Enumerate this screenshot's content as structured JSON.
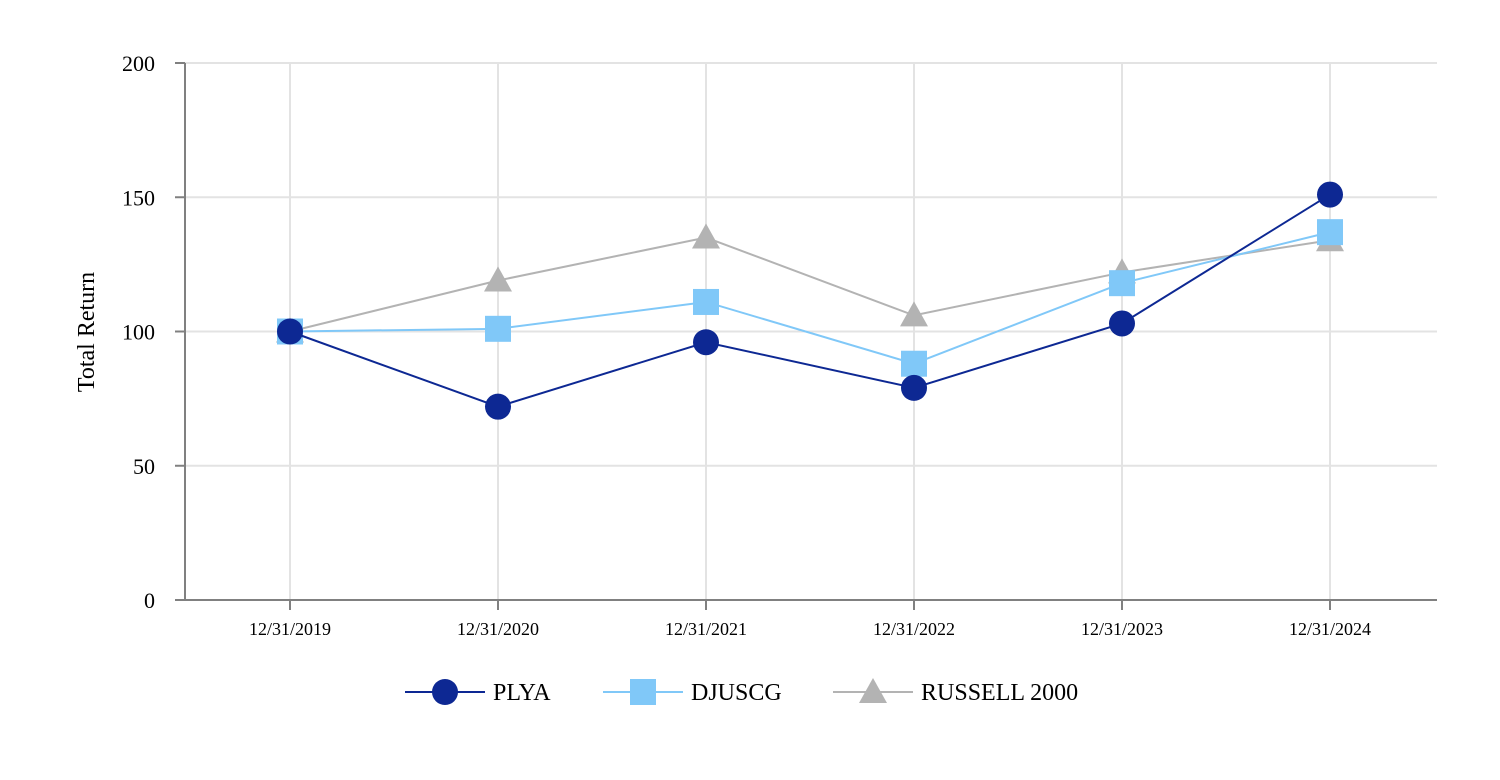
{
  "chart_data": {
    "type": "line",
    "title": "",
    "xlabel": "",
    "ylabel": "Total Return",
    "ylim": [
      0,
      200
    ],
    "yticks": [
      "0",
      "50",
      "100",
      "150",
      "200"
    ],
    "categories": [
      "12/31/2019",
      "12/31/2020",
      "12/31/2021",
      "12/31/2022",
      "12/31/2023",
      "12/31/2024"
    ],
    "grid": true,
    "legend_position": "bottom",
    "series": [
      {
        "name": "RUSSELL 2000",
        "marker": "triangle",
        "color": "#b3b3b3",
        "values": [
          100,
          119,
          135,
          106,
          122,
          134
        ]
      },
      {
        "name": "DJUSCG",
        "marker": "square",
        "color": "#80c8f8",
        "values": [
          100,
          101,
          111,
          88,
          118,
          137
        ]
      },
      {
        "name": "PLYA",
        "marker": "circle",
        "color": "#0d2893",
        "values": [
          100,
          72,
          96,
          79,
          103,
          151
        ]
      }
    ],
    "legend": [
      "PLYA",
      "DJUSCG",
      "RUSSELL 2000"
    ]
  }
}
